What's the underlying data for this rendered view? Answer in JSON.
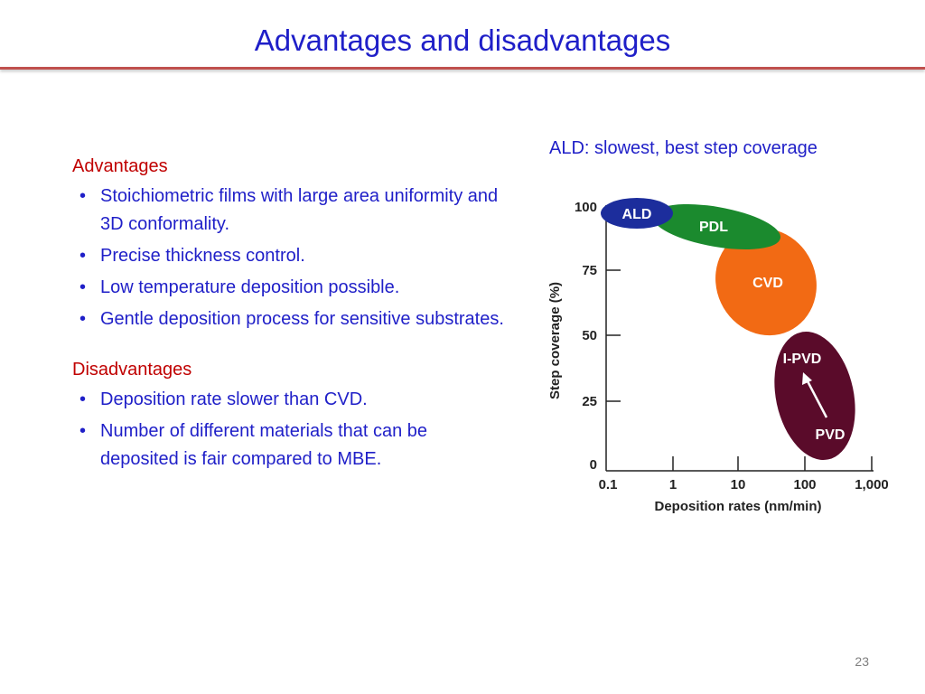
{
  "slide": {
    "title": "Advantages and disadvantages",
    "page_number": "23"
  },
  "advantages": {
    "heading": "Advantages",
    "items": [
      "Stoichiometric films with large area uniformity and 3D conformality.",
      "Precise thickness control.",
      "Low temperature deposition possible.",
      "Gentle deposition process for sensitive substrates."
    ]
  },
  "disadvantages": {
    "heading": "Disadvantages",
    "items": [
      "Deposition rate slower than CVD.",
      "Number of different materials that can be deposited is fair compared to MBE."
    ]
  },
  "figure": {
    "caption": "ALD: slowest, best step coverage",
    "ylabel": "Step coverage (%)",
    "xlabel": "Deposition rates (nm/min)",
    "y_ticks": [
      "100",
      "75",
      "50",
      "25",
      "0"
    ],
    "x_ticks": [
      "0.1",
      "1",
      "10",
      "100",
      "1,000"
    ],
    "regions": [
      {
        "label": "ALD",
        "color": "#1c2d9c"
      },
      {
        "label": "PDL",
        "color": "#1b8a2e"
      },
      {
        "label": "CVD",
        "color": "#f26a14"
      },
      {
        "label": "I-PVD",
        "color": "#5a0b2a"
      },
      {
        "label": "PVD",
        "color": "#5a0b2a"
      }
    ],
    "bullet_char": "•"
  }
}
